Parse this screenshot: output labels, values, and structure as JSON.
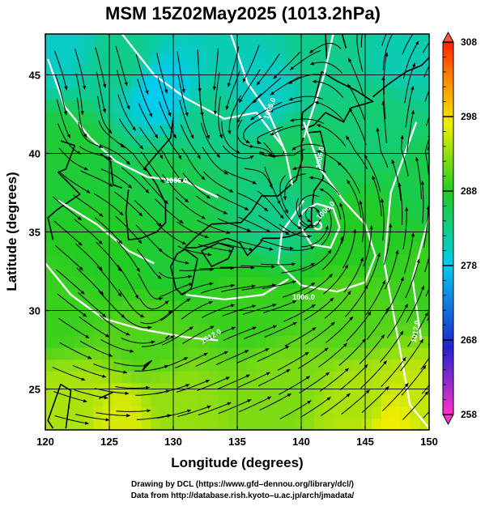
{
  "title": "MSM 15Z02May2025 (1013.2hPa)",
  "chart_data": {
    "type": "heatmap",
    "title": "MSM 15Z02May2025 (1013.2hPa)",
    "xlabel": "Longitude (degrees)",
    "ylabel": "Latitude  (degrees)",
    "xlim": [
      120,
      150
    ],
    "ylim": [
      22.4,
      47.6
    ],
    "xticks": [
      "120",
      "125",
      "130",
      "135",
      "140",
      "145",
      "150"
    ],
    "yticks": [
      "25",
      "30",
      "35",
      "40",
      "45"
    ],
    "xtick_values": [
      120,
      125,
      130,
      135,
      140,
      145,
      150
    ],
    "ytick_values": [
      25,
      30,
      35,
      40,
      45
    ],
    "grid": true,
    "colorbar": {
      "ticks": [
        "308",
        "298",
        "288",
        "278",
        "268",
        "258"
      ],
      "tick_values": [
        308,
        298,
        288,
        278,
        268,
        258
      ],
      "range": [
        258,
        308
      ],
      "colors": [
        "#ff33cc",
        "#2222cc",
        "#00ccee",
        "#22cc22",
        "#eeee00",
        "#ff8800",
        "#ff2200"
      ]
    },
    "field_samples": [
      {
        "lon": 121,
        "lat": 47,
        "value": 280
      },
      {
        "lon": 126,
        "lat": 46,
        "value": 283
      },
      {
        "lon": 129,
        "lat": 44,
        "value": 278
      },
      {
        "lon": 133,
        "lat": 42,
        "value": 283
      },
      {
        "lon": 137,
        "lat": 44,
        "value": 280
      },
      {
        "lon": 142,
        "lat": 46,
        "value": 283
      },
      {
        "lon": 148,
        "lat": 46,
        "value": 281
      },
      {
        "lon": 146,
        "lat": 42,
        "value": 284
      },
      {
        "lon": 122,
        "lat": 40,
        "value": 287
      },
      {
        "lon": 130,
        "lat": 38,
        "value": 286
      },
      {
        "lon": 140,
        "lat": 40,
        "value": 285
      },
      {
        "lon": 138,
        "lat": 36,
        "value": 283
      },
      {
        "lon": 125,
        "lat": 34,
        "value": 288
      },
      {
        "lon": 130,
        "lat": 34,
        "value": 287
      },
      {
        "lon": 145,
        "lat": 35,
        "value": 288
      },
      {
        "lon": 150,
        "lat": 38,
        "value": 286
      },
      {
        "lon": 121,
        "lat": 30,
        "value": 289
      },
      {
        "lon": 128,
        "lat": 28,
        "value": 290
      },
      {
        "lon": 136,
        "lat": 30,
        "value": 289
      },
      {
        "lon": 144,
        "lat": 30,
        "value": 290
      },
      {
        "lon": 150,
        "lat": 32,
        "value": 289
      },
      {
        "lon": 122,
        "lat": 24,
        "value": 294
      },
      {
        "lon": 130,
        "lat": 24,
        "value": 293
      },
      {
        "lon": 138,
        "lat": 25,
        "value": 292
      },
      {
        "lon": 145,
        "lat": 24,
        "value": 294
      },
      {
        "lon": 150,
        "lat": 24,
        "value": 295
      },
      {
        "lon": 126,
        "lat": 23,
        "value": 296
      },
      {
        "lon": 147,
        "lat": 23,
        "value": 297
      }
    ],
    "isobar_labels": [
      "1006.0",
      "1006.0",
      "1006.0",
      "1006.0",
      "1012.0",
      "1006.0",
      "1012.0"
    ],
    "low_center": {
      "lon": 141.3,
      "lat": 35.4
    }
  },
  "credits": {
    "line1": "Drawing by DCL (https://www.gfd–dennou.org/library/dcl/)",
    "line2": "Data from http://database.rish.kyoto–u.ac.jp/arch/jmadata/"
  }
}
